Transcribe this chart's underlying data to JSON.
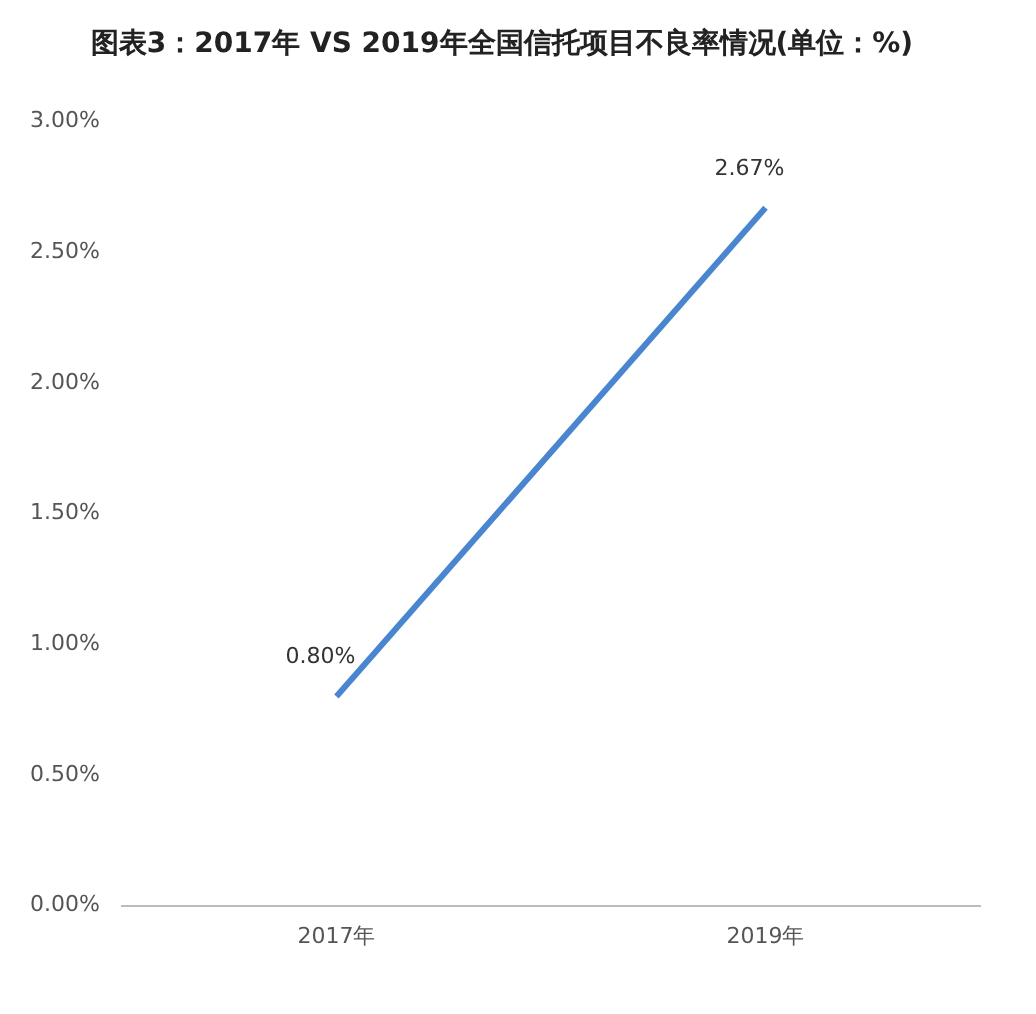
{
  "chart_data": {
    "type": "line",
    "title": "图表3：2017年 VS 2019年全国信托项目不良率情况(单位：%)",
    "categories": [
      "2017年",
      "2019年"
    ],
    "series": [
      {
        "color": "#4a86d0",
        "values": [
          0.8,
          2.67
        ],
        "value_labels": [
          "0.80%",
          "2.67%"
        ]
      }
    ],
    "ylim": [
      0,
      3
    ],
    "yticks": [
      {
        "value": 0,
        "label": "0.00%"
      },
      {
        "value": 0.5,
        "label": "0.50%"
      },
      {
        "value": 1,
        "label": "1.00%"
      },
      {
        "value": 1.5,
        "label": "1.50%"
      },
      {
        "value": 2,
        "label": "2.00%"
      },
      {
        "value": 2.5,
        "label": "2.50%"
      },
      {
        "value": 3,
        "label": "3.00%"
      }
    ],
    "grid": false,
    "legend": false,
    "marker": "none",
    "line_style": "solid"
  }
}
